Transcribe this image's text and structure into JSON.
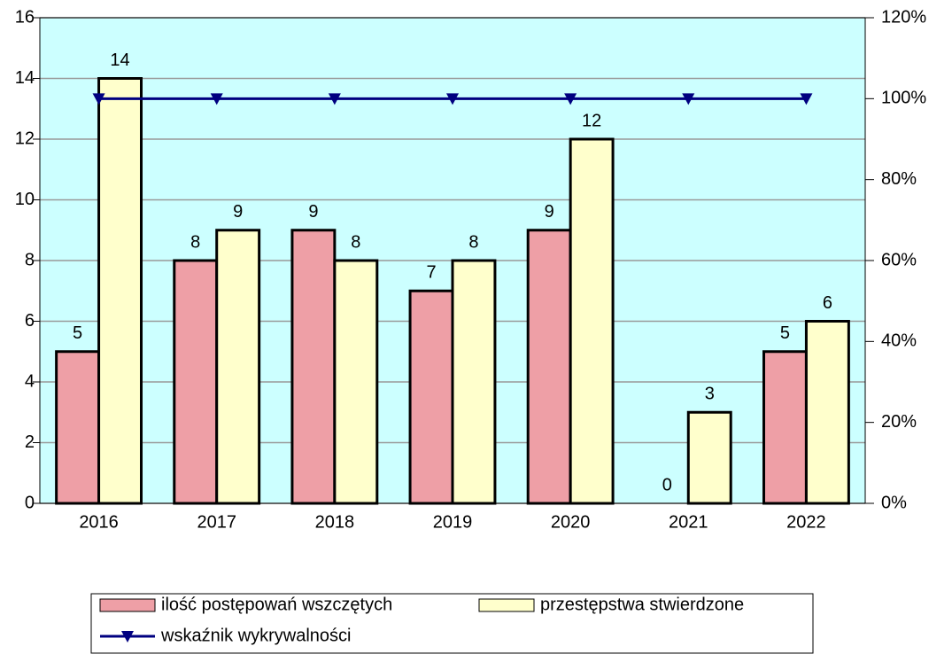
{
  "chart_data": {
    "type": "bar",
    "categories": [
      "2016",
      "2017",
      "2018",
      "2019",
      "2020",
      "2021",
      "2022"
    ],
    "series": [
      {
        "name": "ilość postępowań wszczętych",
        "color": "#ee9fa6",
        "values": [
          5,
          8,
          9,
          7,
          9,
          0,
          5
        ]
      },
      {
        "name": "przestępstwa stwierdzone",
        "color": "#ffffcc",
        "values": [
          14,
          9,
          8,
          8,
          12,
          3,
          6
        ]
      },
      {
        "name": "wskaźnik wykrywalności",
        "type": "line",
        "axis": "y2",
        "color": "#000080",
        "values": [
          100,
          100,
          100,
          100,
          100,
          100,
          100
        ]
      }
    ],
    "ylim": [
      0,
      16
    ],
    "yticks": [
      0,
      2,
      4,
      6,
      8,
      10,
      12,
      14,
      16
    ],
    "y2lim": [
      0,
      120
    ],
    "y2ticks": [
      {
        "value": 0,
        "label": "0%"
      },
      {
        "value": 20,
        "label": "20%"
      },
      {
        "value": 40,
        "label": "40%"
      },
      {
        "value": 60,
        "label": "60%"
      },
      {
        "value": 80,
        "label": "80%"
      },
      {
        "value": 100,
        "label": "100%"
      },
      {
        "value": 120,
        "label": "120%"
      }
    ],
    "grid": true,
    "plot_background": "#ccffff",
    "legend": "bottom"
  }
}
